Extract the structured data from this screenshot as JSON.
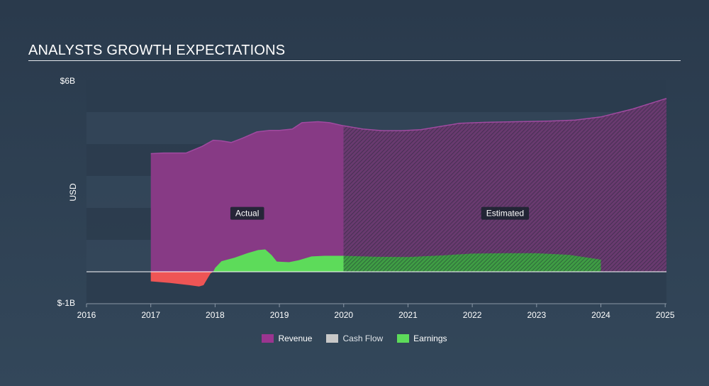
{
  "title": "ANALYSTS GROWTH EXPECTATIONS",
  "colors": {
    "revenue": "#9b3590",
    "cash_flow": "#c8c8c8",
    "earnings": "#5ddb5a",
    "negative": "#ee5555"
  },
  "chart_data": {
    "type": "area",
    "ylabel": "USD",
    "y_ticks": [
      "$6B",
      "$-1B"
    ],
    "ylim": [
      -1,
      6
    ],
    "xlim": [
      2016,
      2025.02
    ],
    "x_ticks": [
      "2016",
      "2017",
      "2018",
      "2019",
      "2020",
      "2021",
      "2022",
      "2023",
      "2024",
      "2025"
    ],
    "annotations": [
      {
        "text": "Actual",
        "x": 2017.5
      },
      {
        "text": "Estimated",
        "x": 2022.5
      }
    ],
    "actual_end": 2020.0,
    "series": [
      {
        "name": "Revenue",
        "color": "#9b3590",
        "points": [
          [
            2017.0,
            3.7
          ],
          [
            2017.2,
            3.72
          ],
          [
            2017.55,
            3.72
          ],
          [
            2017.8,
            3.93
          ],
          [
            2017.97,
            4.12
          ],
          [
            2018.1,
            4.1
          ],
          [
            2018.25,
            4.05
          ],
          [
            2018.42,
            4.18
          ],
          [
            2018.65,
            4.38
          ],
          [
            2018.85,
            4.43
          ],
          [
            2019.0,
            4.43
          ],
          [
            2019.2,
            4.47
          ],
          [
            2019.35,
            4.67
          ],
          [
            2019.6,
            4.7
          ],
          [
            2019.78,
            4.67
          ],
          [
            2020.0,
            4.57
          ],
          [
            2020.3,
            4.47
          ],
          [
            2020.6,
            4.42
          ],
          [
            2020.9,
            4.42
          ],
          [
            2021.2,
            4.45
          ],
          [
            2021.5,
            4.55
          ],
          [
            2021.8,
            4.65
          ],
          [
            2022.2,
            4.68
          ],
          [
            2022.7,
            4.7
          ],
          [
            2023.2,
            4.72
          ],
          [
            2023.6,
            4.75
          ],
          [
            2024.0,
            4.85
          ],
          [
            2024.5,
            5.1
          ],
          [
            2025.02,
            5.43
          ]
        ]
      },
      {
        "name": "Earnings",
        "color": "#5ddb5a",
        "points": [
          [
            2017.0,
            -0.3
          ],
          [
            2017.3,
            -0.35
          ],
          [
            2017.6,
            -0.42
          ],
          [
            2017.75,
            -0.46
          ],
          [
            2017.82,
            -0.42
          ],
          [
            2017.87,
            -0.25
          ],
          [
            2017.93,
            -0.05
          ],
          [
            2017.97,
            0.0
          ],
          [
            2018.0,
            0.12
          ],
          [
            2018.1,
            0.33
          ],
          [
            2018.3,
            0.44
          ],
          [
            2018.5,
            0.58
          ],
          [
            2018.67,
            0.68
          ],
          [
            2018.78,
            0.7
          ],
          [
            2018.88,
            0.52
          ],
          [
            2018.96,
            0.32
          ],
          [
            2019.15,
            0.3
          ],
          [
            2019.3,
            0.36
          ],
          [
            2019.5,
            0.48
          ],
          [
            2019.7,
            0.5
          ],
          [
            2020.0,
            0.5
          ],
          [
            2020.5,
            0.47
          ],
          [
            2021.0,
            0.46
          ],
          [
            2021.5,
            0.51
          ],
          [
            2022.0,
            0.57
          ],
          [
            2022.5,
            0.58
          ],
          [
            2023.0,
            0.58
          ],
          [
            2023.5,
            0.53
          ],
          [
            2024.0,
            0.38
          ]
        ]
      }
    ],
    "legend": [
      "Revenue",
      "Cash Flow",
      "Earnings"
    ],
    "legend_position": "bottom-center"
  }
}
